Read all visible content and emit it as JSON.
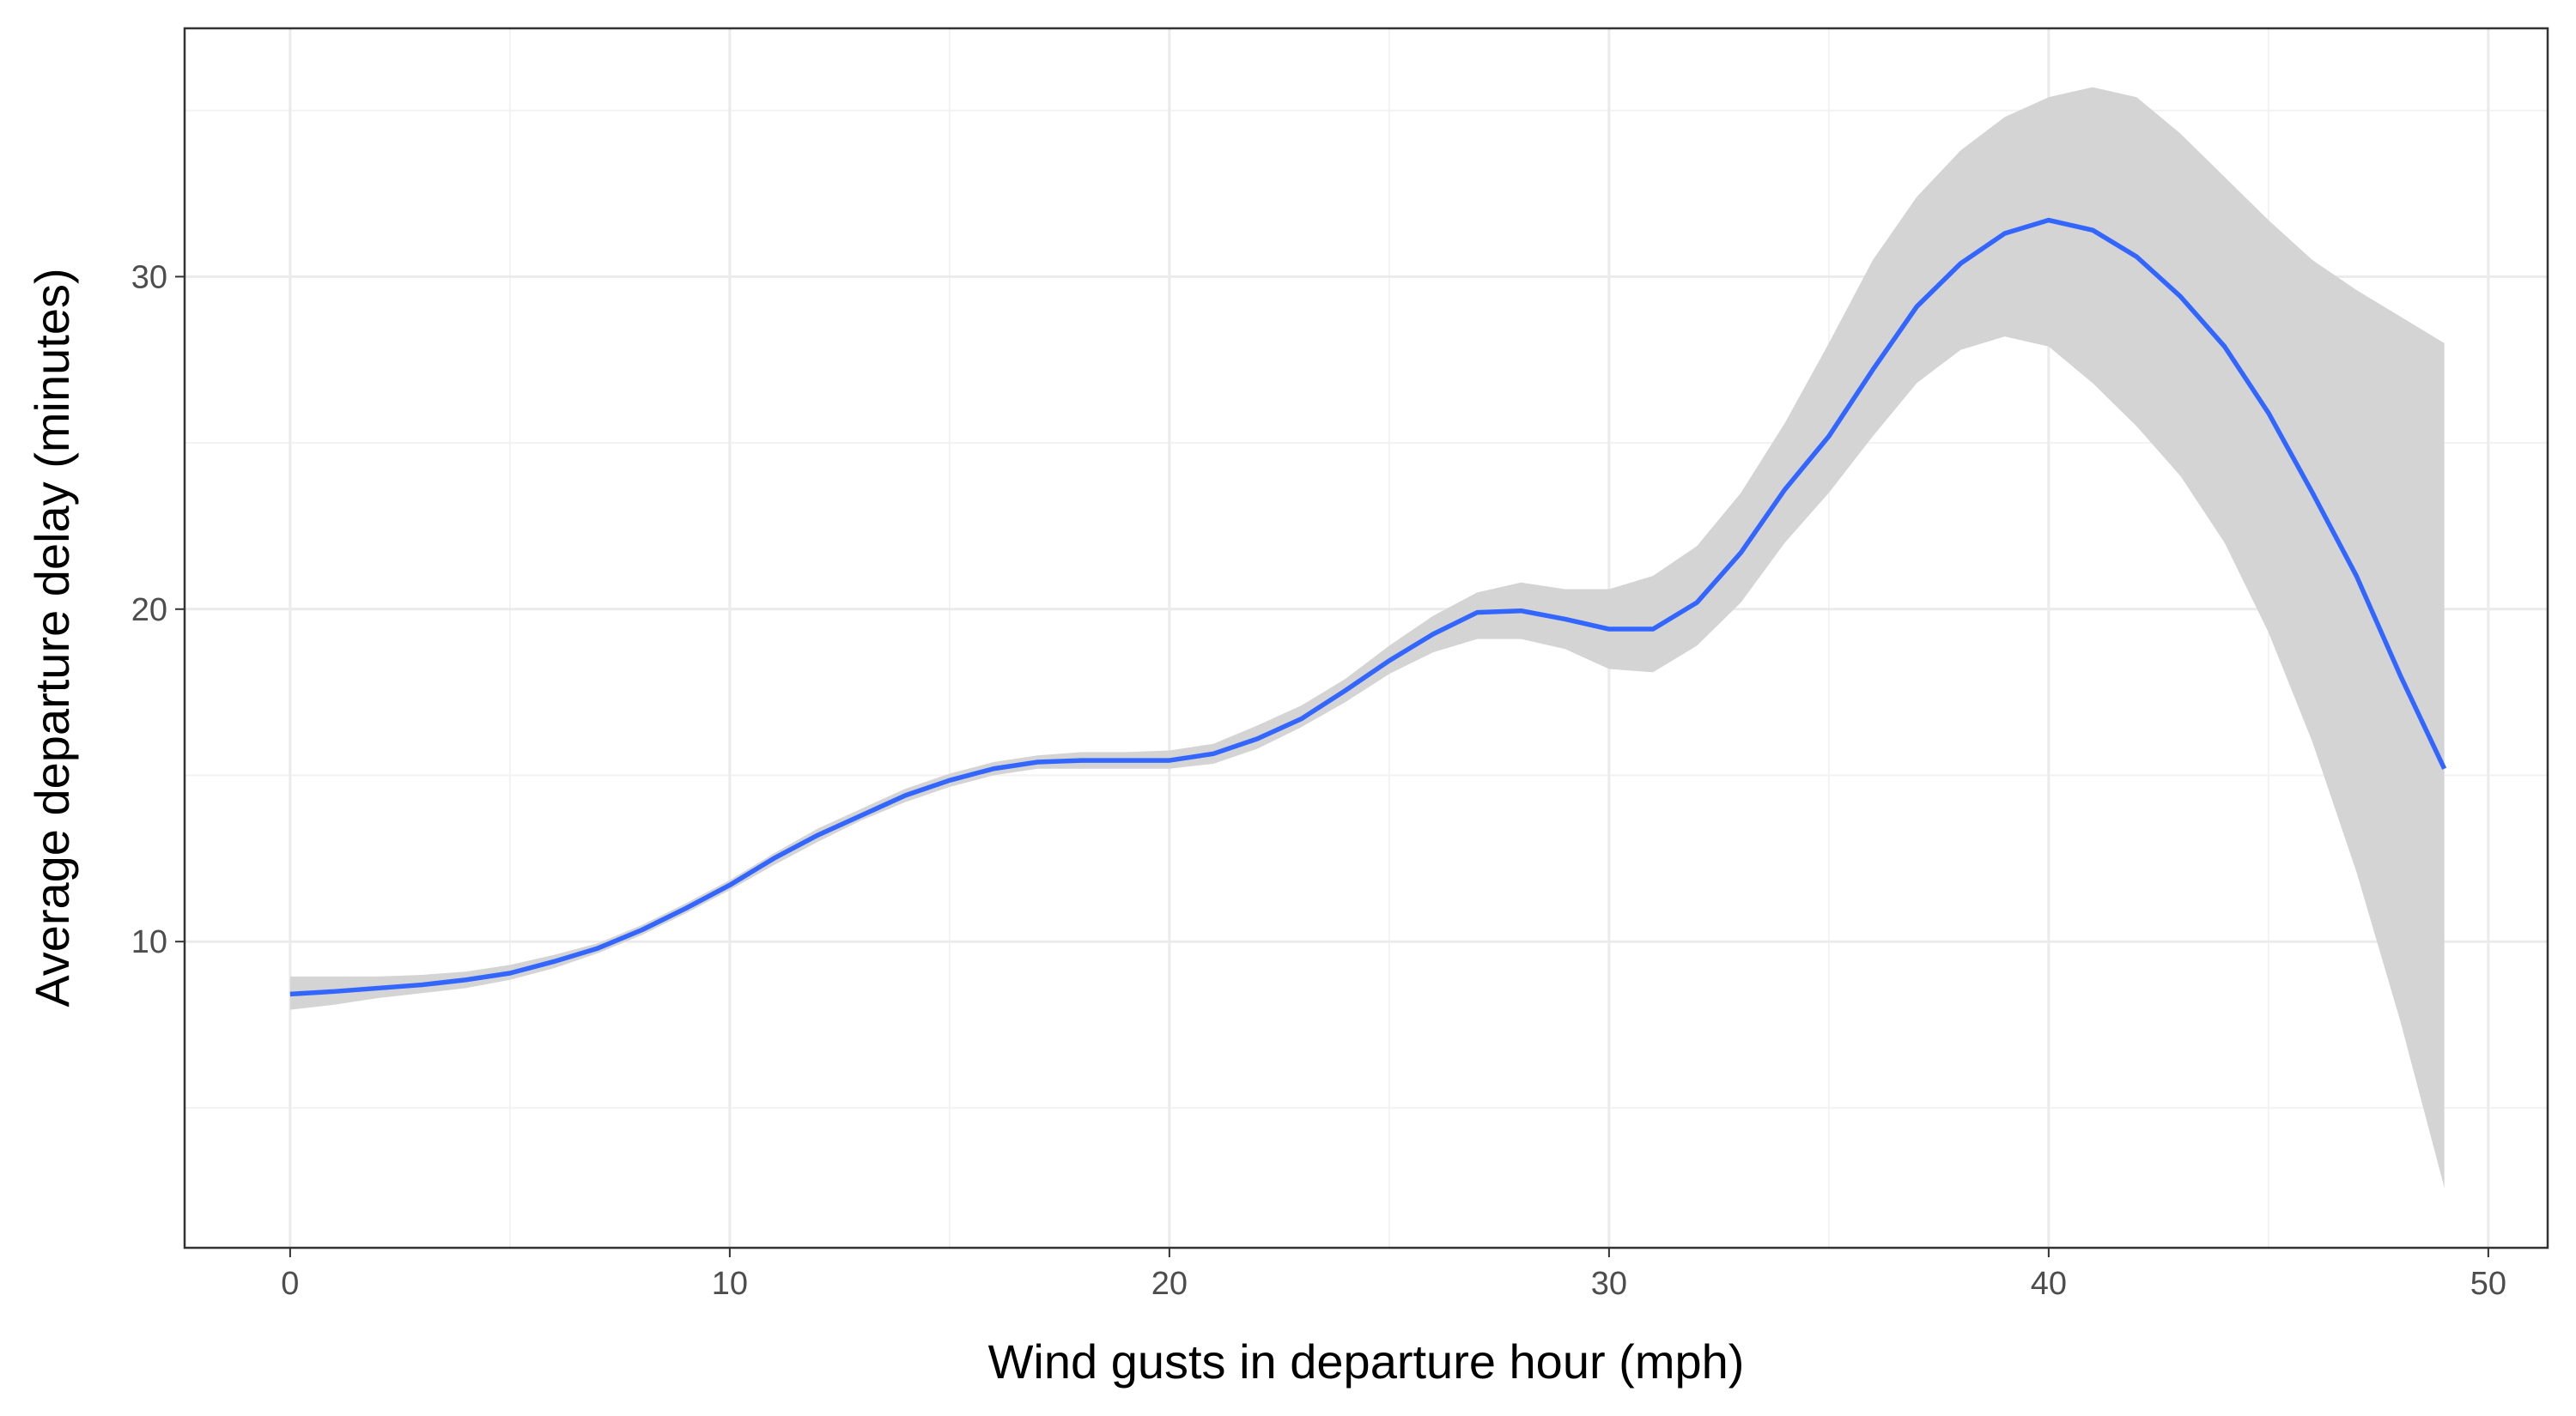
{
  "chart_data": {
    "type": "smooth",
    "x_label": "Wind gusts in departure hour (mph)",
    "y_label": "Average departure delay (minutes)",
    "x": [
      0,
      1,
      2,
      3,
      4,
      5,
      6,
      7,
      8,
      9,
      10,
      11,
      12,
      13,
      14,
      15,
      16,
      17,
      18,
      19,
      20,
      21,
      22,
      23,
      24,
      25,
      26,
      27,
      28,
      29,
      30,
      31,
      32,
      33,
      34,
      35,
      36,
      37,
      38,
      39,
      40,
      41,
      42,
      43,
      44,
      45,
      46,
      47,
      48,
      49
    ],
    "y": [
      8.42,
      8.5,
      8.6,
      8.7,
      8.85,
      9.05,
      9.4,
      9.8,
      10.35,
      11.0,
      11.7,
      12.5,
      13.2,
      13.8,
      14.4,
      14.85,
      15.2,
      15.4,
      15.45,
      15.45,
      15.45,
      15.65,
      16.1,
      16.7,
      17.55,
      18.45,
      19.25,
      19.9,
      19.95,
      19.7,
      19.4,
      19.4,
      20.2,
      21.7,
      23.6,
      25.2,
      27.2,
      29.1,
      30.4,
      31.3,
      31.7,
      31.4,
      30.6,
      29.4,
      27.9,
      25.9,
      23.5,
      21.0,
      18.0,
      15.2
    ],
    "ymin": [
      7.95,
      8.1,
      8.3,
      8.45,
      8.6,
      8.85,
      9.2,
      9.65,
      10.2,
      10.85,
      11.55,
      12.3,
      13.0,
      13.65,
      14.2,
      14.65,
      15.0,
      15.2,
      15.2,
      15.2,
      15.2,
      15.35,
      15.8,
      16.45,
      17.2,
      18.05,
      18.7,
      19.1,
      19.1,
      18.8,
      18.2,
      18.1,
      18.9,
      20.2,
      22.0,
      23.5,
      25.2,
      26.8,
      27.8,
      28.2,
      27.9,
      26.8,
      25.5,
      24.0,
      22.0,
      19.3,
      16.0,
      12.1,
      7.6,
      2.6
    ],
    "ymax": [
      8.95,
      8.95,
      8.95,
      9.0,
      9.1,
      9.3,
      9.6,
      9.95,
      10.5,
      11.15,
      11.85,
      12.65,
      13.4,
      14.0,
      14.6,
      15.05,
      15.4,
      15.6,
      15.7,
      15.7,
      15.75,
      15.95,
      16.5,
      17.1,
      17.9,
      18.9,
      19.8,
      20.5,
      20.8,
      20.6,
      20.6,
      21.0,
      21.9,
      23.5,
      25.6,
      28.0,
      30.5,
      32.4,
      33.8,
      34.8,
      35.4,
      35.7,
      35.4,
      34.3,
      33.0,
      31.7,
      30.5,
      29.6,
      28.8,
      28.0
    ],
    "line_color": "#3366ff",
    "band_color": "#d4d4d4",
    "xlim": [
      -2.4,
      51.35
    ],
    "ylim": [
      0.79,
      37.47
    ],
    "xticks": [
      0,
      10,
      20,
      30,
      40,
      50
    ],
    "yticks": [
      10,
      20,
      30
    ],
    "x_minor_ticks": [
      5,
      15,
      25,
      35,
      45
    ],
    "y_minor_ticks": [
      5,
      15,
      25,
      35
    ],
    "grid": true
  }
}
